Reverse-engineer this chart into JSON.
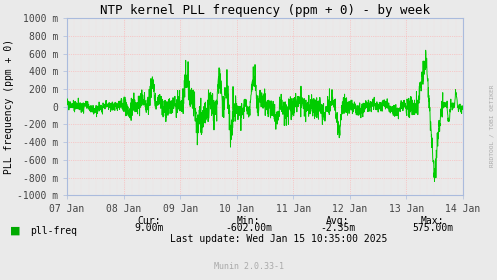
{
  "title": "NTP kernel PLL frequency (ppm + 0) - by week",
  "ylabel": "PLL frequency (ppm + 0)",
  "bg_color": "#EAEAEA",
  "plot_bg_color": "#EAEAEA",
  "grid_color_h": "#DDDDDD",
  "grid_color_v": "#FFAAAA",
  "grid_linestyle": "dotted",
  "line_color": "#00CC00",
  "spine_color": "#AABBDD",
  "text_color": "#000000",
  "tick_color": "#444444",
  "legend_label": "pll-freq",
  "legend_color": "#00AA00",
  "cur": "9.00m",
  "min_val": "-602.00m",
  "avg_val": "-2.35m",
  "max_val": "575.00m",
  "last_update": "Last update: Wed Jan 15 10:35:00 2025",
  "munin_version": "Munin 2.0.33-1",
  "rrdtool_label": "RRDTOOL / TOBI OETIKER",
  "ylim": [
    -1000,
    1000
  ],
  "yticks": [
    -1000,
    -800,
    -600,
    -400,
    -200,
    0,
    200,
    400,
    600,
    800,
    1000
  ],
  "xtick_labels": [
    "07 Jan",
    "08 Jan",
    "09 Jan",
    "10 Jan",
    "11 Jan",
    "12 Jan",
    "13 Jan",
    "14 Jan"
  ],
  "figsize": [
    4.97,
    2.8
  ],
  "dpi": 100
}
